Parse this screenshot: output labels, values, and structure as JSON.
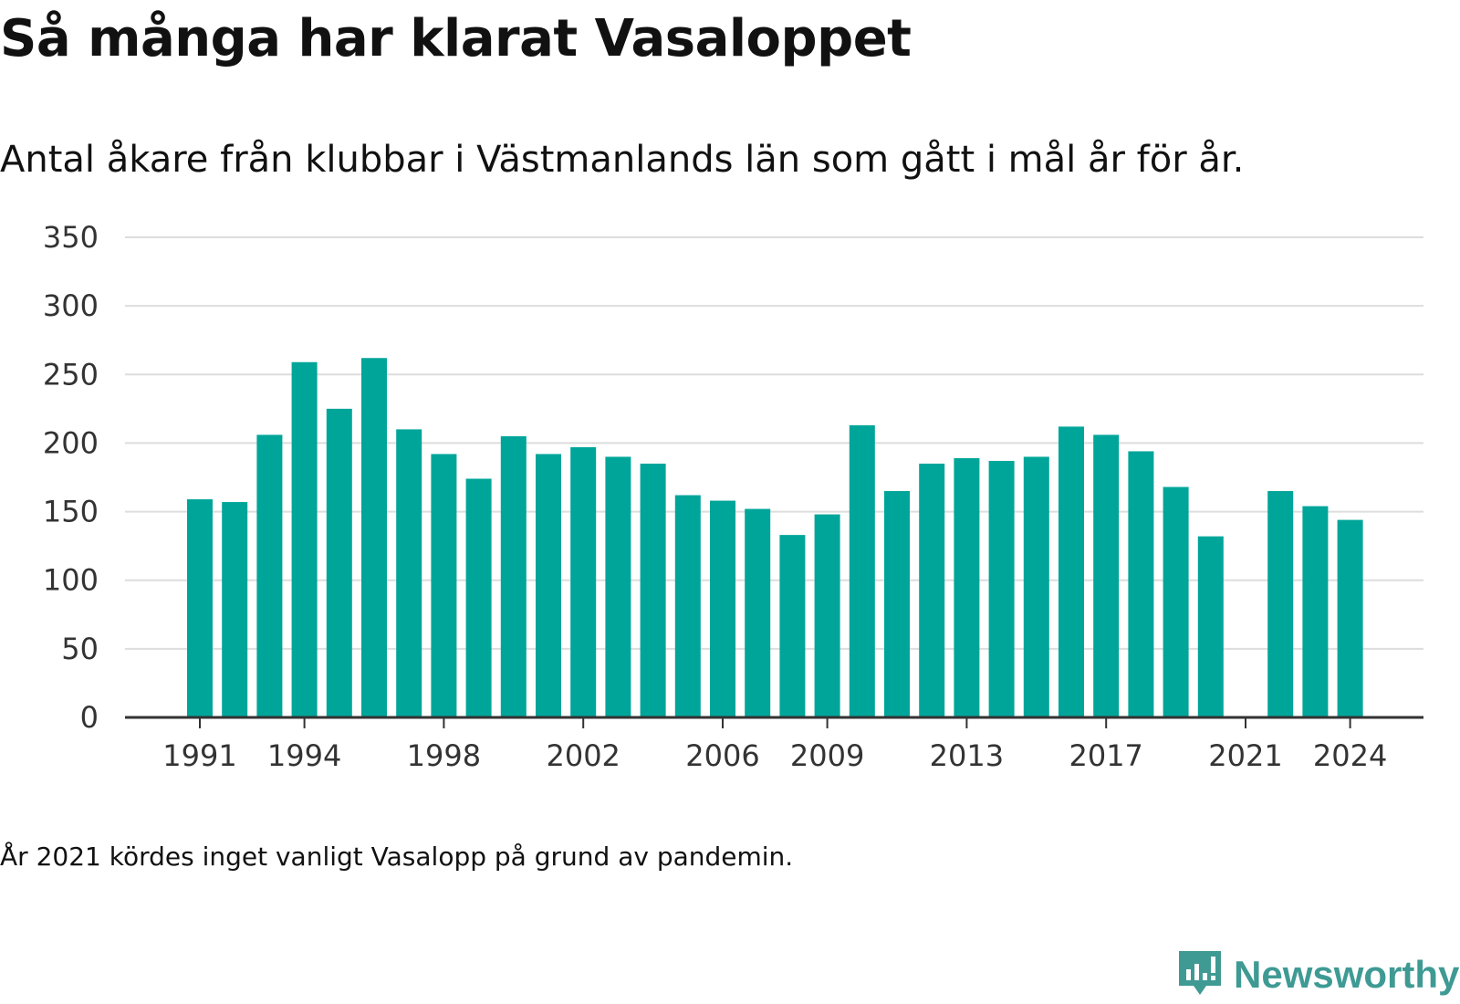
{
  "header": {
    "title": "Så många har klarat Vasaloppet",
    "subtitle": "Antal åkare från klubbar i Västmanlands län som gått i mål år för år."
  },
  "footnote": "År 2021 kördes inget vanligt Vasalopp på grund av pandemin.",
  "brand": {
    "name": "Newsworthy",
    "color": "#3f9a94",
    "icon": "newsworthy-logo-icon"
  },
  "colors": {
    "bar": "#00a59a",
    "grid": "#dddddd",
    "axis": "#333333"
  },
  "chart_data": {
    "type": "bar",
    "title": "",
    "xlabel": "",
    "ylabel": "",
    "ylim": [
      0,
      350
    ],
    "yticks": [
      0,
      50,
      100,
      150,
      200,
      250,
      300,
      350
    ],
    "grid": true,
    "categories": [
      1991,
      1992,
      1993,
      1994,
      1995,
      1996,
      1997,
      1998,
      1999,
      2000,
      2001,
      2002,
      2003,
      2004,
      2005,
      2006,
      2007,
      2008,
      2009,
      2010,
      2011,
      2012,
      2013,
      2014,
      2015,
      2016,
      2017,
      2018,
      2019,
      2020,
      2021,
      2022,
      2023,
      2024
    ],
    "values": [
      159,
      157,
      206,
      259,
      225,
      262,
      210,
      192,
      174,
      205,
      192,
      197,
      190,
      185,
      162,
      158,
      152,
      133,
      148,
      213,
      165,
      185,
      189,
      187,
      190,
      212,
      206,
      194,
      168,
      132,
      null,
      165,
      154,
      144
    ],
    "xtick_labels": [
      "1991",
      "1994",
      "1998",
      "2002",
      "2006",
      "2009",
      "2013",
      "2017",
      "2021",
      "2024"
    ]
  }
}
